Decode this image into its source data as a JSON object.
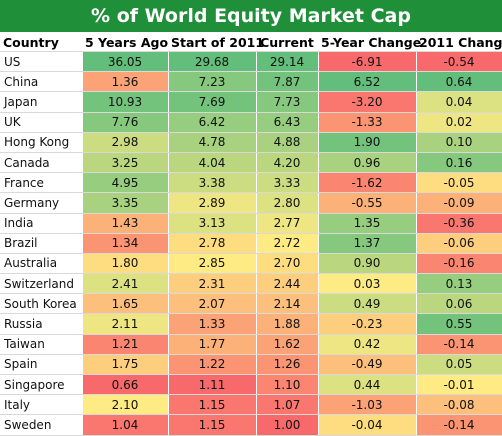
{
  "title": "% of World Equity Market Cap",
  "chart_data": {
    "type": "table",
    "title": "% of World Equity Market Cap",
    "columns": [
      "Country",
      "5 Years Ago",
      "Start of 2011",
      "Current",
      "5-Year Change",
      "2011 Change"
    ],
    "rows": [
      {
        "country": "US",
        "values": [
          "36.05",
          "29.68",
          "29.14",
          "-6.91",
          "-0.54"
        ]
      },
      {
        "country": "China",
        "values": [
          "1.36",
          "7.23",
          "7.87",
          "6.52",
          "0.64"
        ]
      },
      {
        "country": "Japan",
        "values": [
          "10.93",
          "7.69",
          "7.73",
          "-3.20",
          "0.04"
        ]
      },
      {
        "country": "UK",
        "values": [
          "7.76",
          "6.42",
          "6.43",
          "-1.33",
          "0.02"
        ]
      },
      {
        "country": "Hong Kong",
        "values": [
          "2.98",
          "4.78",
          "4.88",
          "1.90",
          "0.10"
        ]
      },
      {
        "country": "Canada",
        "values": [
          "3.25",
          "4.04",
          "4.20",
          "0.96",
          "0.16"
        ]
      },
      {
        "country": "France",
        "values": [
          "4.95",
          "3.38",
          "3.33",
          "-1.62",
          "-0.05"
        ]
      },
      {
        "country": "Germany",
        "values": [
          "3.35",
          "2.89",
          "2.80",
          "-0.55",
          "-0.09"
        ]
      },
      {
        "country": "India",
        "values": [
          "1.43",
          "3.13",
          "2.77",
          "1.35",
          "-0.36"
        ]
      },
      {
        "country": "Brazil",
        "values": [
          "1.34",
          "2.78",
          "2.72",
          "1.37",
          "-0.06"
        ]
      },
      {
        "country": "Australia",
        "values": [
          "1.80",
          "2.85",
          "2.70",
          "0.90",
          "-0.16"
        ]
      },
      {
        "country": "Switzerland",
        "values": [
          "2.41",
          "2.31",
          "2.44",
          "0.03",
          "0.13"
        ]
      },
      {
        "country": "South Korea",
        "values": [
          "1.65",
          "2.07",
          "2.14",
          "0.49",
          "0.06"
        ]
      },
      {
        "country": "Russia",
        "values": [
          "2.11",
          "1.33",
          "1.88",
          "-0.23",
          "0.55"
        ]
      },
      {
        "country": "Taiwan",
        "values": [
          "1.21",
          "1.77",
          "1.62",
          "0.42",
          "-0.14"
        ]
      },
      {
        "country": "Spain",
        "values": [
          "1.75",
          "1.22",
          "1.26",
          "-0.49",
          "0.05"
        ]
      },
      {
        "country": "Singapore",
        "values": [
          "0.66",
          "1.11",
          "1.10",
          "0.44",
          "-0.01"
        ]
      },
      {
        "country": "Italy",
        "values": [
          "2.10",
          "1.15",
          "1.07",
          "-1.03",
          "-0.08"
        ]
      },
      {
        "country": "Sweden",
        "values": [
          "1.04",
          "1.15",
          "1.00",
          "-0.04",
          "-0.14"
        ]
      }
    ],
    "color_scale": {
      "low": "#f8696b",
      "mid": "#ffeb84",
      "high": "#63be7b"
    }
  }
}
